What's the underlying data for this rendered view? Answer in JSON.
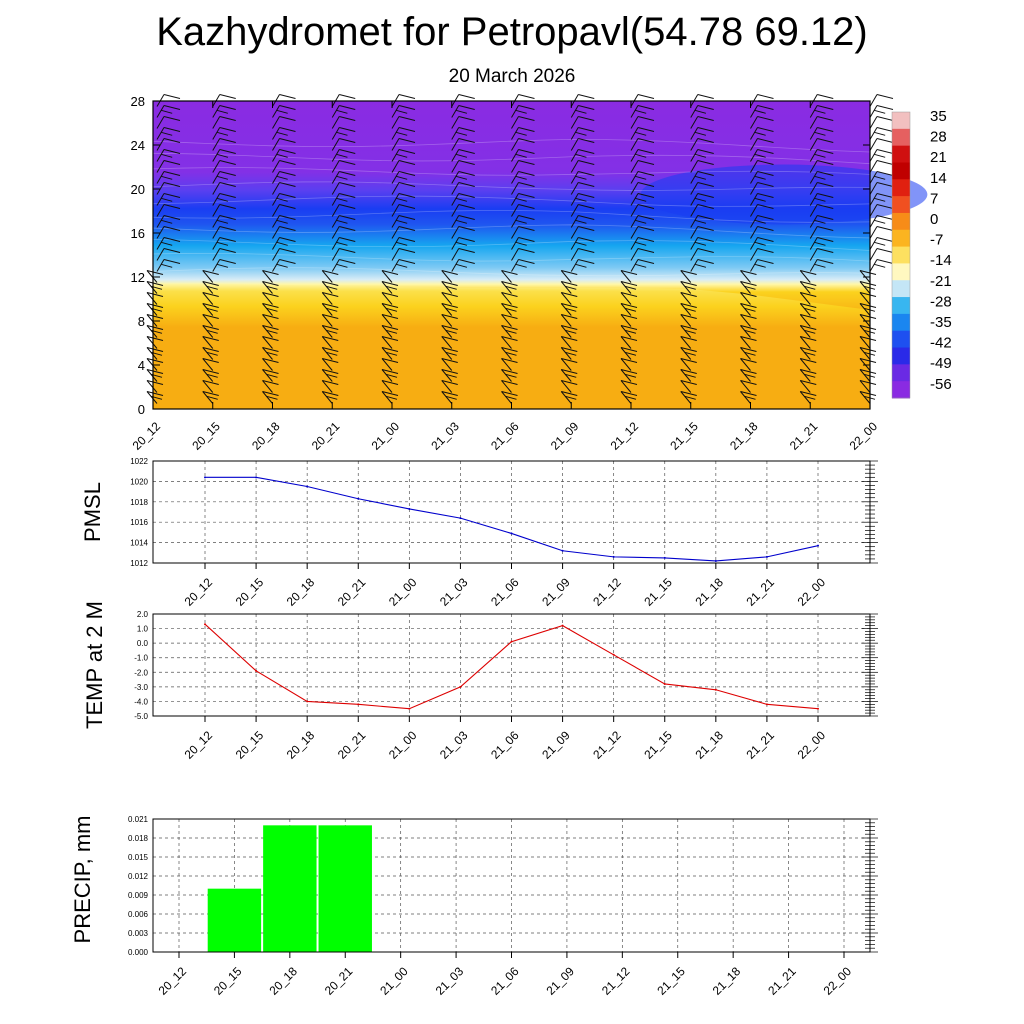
{
  "title": "Kazhydromet for Petropavl(54.78 69.12)",
  "subtitle": "20 March 2026",
  "chart_data": [
    {
      "type": "heatmap",
      "name": "temperature-height-section",
      "x_ticks": [
        "20_12",
        "20_15",
        "20_18",
        "20_21",
        "21_00",
        "21_03",
        "21_06",
        "21_09",
        "21_12",
        "21_15",
        "21_18",
        "21_21",
        "22_00"
      ],
      "y_ticks": [
        0,
        4,
        8,
        12,
        16,
        20,
        24,
        28
      ],
      "ylim": [
        0,
        28
      ],
      "colorbar_labels": [
        "35",
        "28",
        "21",
        "14",
        "7",
        "0",
        "-7",
        "-14",
        "-21",
        "-28",
        "-35",
        "-42",
        "-49",
        "-56"
      ],
      "colors": {
        "warm": "#f7ad12",
        "warm_light": "#fbd21e",
        "pale": "#fff7a8",
        "cyan": "#16a6f0",
        "blue": "#1a3df2",
        "purple": "#8a2be2"
      },
      "freezing_level": [
        11.4,
        11.4,
        11.3,
        11.2,
        11.1,
        11.0,
        11.0,
        11.0,
        11.0,
        10.9,
        10.4,
        9.7,
        9.0
      ],
      "wind_barbs": true
    },
    {
      "type": "line",
      "name": "pmsl",
      "ylabel": "PMSL",
      "x": [
        "20_12",
        "20_15",
        "20_18",
        "20_21",
        "21_00",
        "21_03",
        "21_06",
        "21_09",
        "21_12",
        "21_15",
        "21_18",
        "21_21",
        "22_00"
      ],
      "values": [
        1020.4,
        1020.4,
        1019.5,
        1018.3,
        1017.3,
        1016.4,
        1014.9,
        1013.2,
        1012.6,
        1012.5,
        1012.2,
        1012.6,
        1013.7
      ],
      "ylim": [
        1012,
        1022
      ],
      "y_ticks": [
        "1012",
        "1014",
        "1016",
        "1018",
        "1020",
        "1022"
      ],
      "color": "#0000cc",
      "grid": true
    },
    {
      "type": "line",
      "name": "temp-2m",
      "ylabel": "TEMP at 2 M",
      "x": [
        "20_12",
        "20_15",
        "20_18",
        "20_21",
        "21_00",
        "21_03",
        "21_06",
        "21_09",
        "21_12",
        "21_15",
        "21_18",
        "21_21",
        "22_00"
      ],
      "values": [
        1.3,
        -1.9,
        -4.0,
        -4.2,
        -4.5,
        -3.0,
        0.1,
        1.2,
        -0.8,
        -2.8,
        -3.2,
        -4.2,
        -4.5
      ],
      "ylim": [
        -5.0,
        2.0
      ],
      "y_ticks": [
        "-5.0",
        "-4.0",
        "-3.0",
        "-2.0",
        "-1.0",
        "0.0",
        "1.0",
        "2.0"
      ],
      "color": "#dd0000",
      "grid": true
    },
    {
      "type": "bar",
      "name": "precip",
      "ylabel": "PRECIP, mm",
      "categories": [
        "20_12",
        "20_15",
        "20_18",
        "20_21",
        "21_00",
        "21_03",
        "21_06",
        "21_09",
        "21_12",
        "21_15",
        "21_18",
        "21_21",
        "22_00"
      ],
      "values": [
        0,
        0.01,
        0.02,
        0.02,
        0,
        0,
        0,
        0,
        0,
        0,
        0,
        0,
        0
      ],
      "ylim": [
        0,
        0.021
      ],
      "y_ticks": [
        "0.000",
        "0.003",
        "0.006",
        "0.009",
        "0.012",
        "0.015",
        "0.018",
        "0.021"
      ],
      "color": "#00ff00",
      "grid": true
    }
  ]
}
